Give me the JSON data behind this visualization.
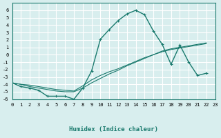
{
  "xlabel": "Humidex (Indice chaleur)",
  "xlim": [
    0,
    23
  ],
  "ylim": [
    -6,
    7
  ],
  "yticks": [
    -6,
    -5,
    -4,
    -3,
    -2,
    -1,
    0,
    1,
    2,
    3,
    4,
    5,
    6
  ],
  "xticks": [
    0,
    1,
    2,
    3,
    4,
    5,
    6,
    7,
    8,
    9,
    10,
    11,
    12,
    13,
    14,
    15,
    16,
    17,
    18,
    19,
    20,
    21,
    22,
    23
  ],
  "bg_color": "#d8eeee",
  "grid_color": "#ffffff",
  "line_color": "#1a7a6e",
  "line1_x": [
    0,
    1,
    2,
    3,
    4,
    5,
    6,
    7,
    8,
    9,
    10,
    11,
    12,
    13,
    14,
    15,
    16,
    17,
    18,
    19,
    20,
    21,
    22
  ],
  "line1_y": [
    -3.8,
    -4.3,
    -4.5,
    -4.8,
    -5.6,
    -5.6,
    -5.6,
    -6.0,
    -4.5,
    -2.2,
    2.1,
    3.4,
    4.6,
    5.5,
    6.0,
    5.4,
    3.2,
    1.4,
    -1.3,
    1.3,
    -1.0,
    -2.8,
    -2.5
  ],
  "line2_x": [
    0,
    1,
    2,
    3,
    4,
    5,
    6,
    7,
    8,
    9,
    10,
    11,
    12,
    13,
    14,
    15,
    16,
    17,
    18,
    19,
    20,
    21,
    22
  ],
  "line2_y": [
    -3.8,
    -4.0,
    -4.3,
    -4.5,
    -4.7,
    -4.9,
    -5.0,
    -5.0,
    -4.5,
    -3.8,
    -3.2,
    -2.6,
    -2.1,
    -1.5,
    -1.0,
    -0.5,
    0.0,
    0.5,
    0.8,
    1.0,
    1.2,
    1.4,
    1.6
  ],
  "line3_x": [
    0,
    1,
    2,
    3,
    4,
    5,
    6,
    7,
    8,
    9,
    10,
    11,
    12,
    13,
    14,
    15,
    16,
    17,
    18,
    19,
    20,
    21,
    22
  ],
  "line3_y": [
    -3.8,
    -4.0,
    -4.1,
    -4.3,
    -4.5,
    -4.7,
    -4.8,
    -4.9,
    -4.2,
    -3.4,
    -2.8,
    -2.3,
    -1.9,
    -1.4,
    -0.9,
    -0.4,
    0.0,
    0.4,
    0.7,
    0.9,
    1.1,
    1.3,
    1.5
  ]
}
